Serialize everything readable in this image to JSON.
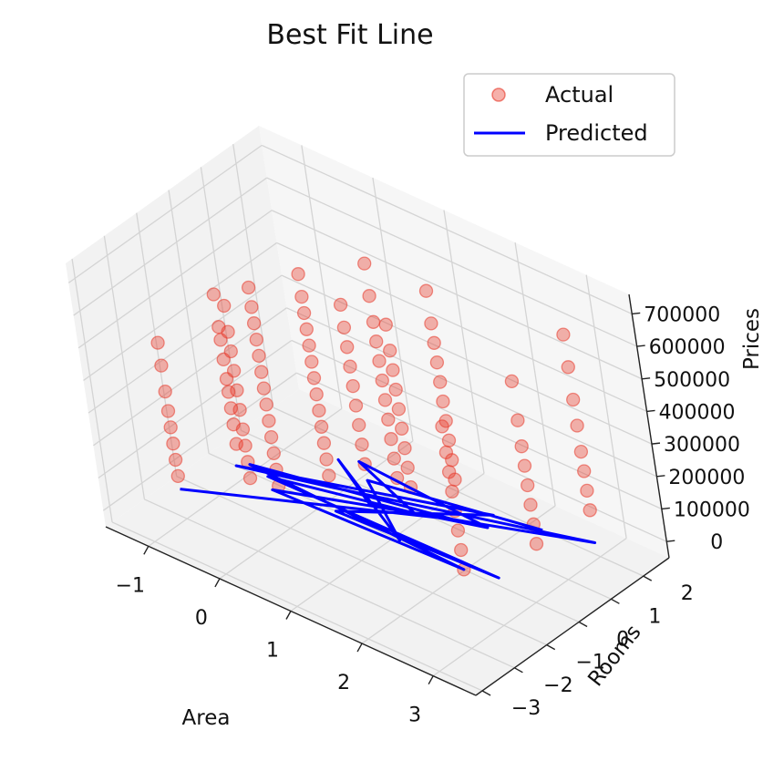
{
  "chart_data": {
    "type": "scatter",
    "projection": "3d",
    "title": "Best Fit Line",
    "xlabel": "Area",
    "ylabel": "Rooms",
    "zlabel": "Prices",
    "xlim": [
      -1.6,
      3.6
    ],
    "ylim": [
      -3.2,
      2.8
    ],
    "zlim": [
      -50000,
      760000
    ],
    "x_ticks": [
      "−1",
      "0",
      "1",
      "2",
      "3"
    ],
    "y_ticks": [
      "−3",
      "−2",
      "−1",
      "0",
      "1",
      "2"
    ],
    "z_ticks": [
      "0",
      "100000",
      "200000",
      "300000",
      "400000",
      "500000",
      "600000",
      "700000"
    ],
    "grid": true,
    "legend": "top-right",
    "colors": {
      "actual": "#e8392a",
      "predicted": "#0000ff"
    },
    "series": [
      {
        "name": "Actual",
        "kind": "scatter",
        "columns": [
          {
            "x": -1.2,
            "y": -1.7,
            "z": [
              40000,
              90000,
              140000,
              190000,
              240000,
              300000,
              380000,
              450000
            ]
          },
          {
            "x": -1.0,
            "y": -0.3,
            "z": [
              60000,
              120000,
              170000,
              220000,
              260000,
              320000,
              380000,
              420000,
              520000
            ]
          },
          {
            "x": -0.6,
            "y": -0.8,
            "z": [
              30000,
              80000,
              130000,
              180000,
              240000,
              300000,
              360000,
              420000,
              480000,
              560000
            ]
          },
          {
            "x": -0.35,
            "y": -0.5,
            "z": [
              10000,
              60000,
              110000,
              160000,
              210000,
              260000,
              310000,
              360000,
              410000,
              460000,
              510000,
              560000,
              620000
            ]
          },
          {
            "x": 0.0,
            "y": 0.3,
            "z": [
              20000,
              70000,
              120000,
              170000,
              220000,
              270000,
              320000,
              370000,
              420000,
              470000,
              520000,
              570000,
              640000
            ]
          },
          {
            "x": 0.3,
            "y": 0.8,
            "z": [
              50000,
              110000,
              170000,
              230000,
              290000,
              350000,
              410000,
              470000,
              540000
            ]
          },
          {
            "x": 0.7,
            "y": 0.9,
            "z": [
              40000,
              100000,
              160000,
              220000,
              280000,
              340000,
              400000,
              460000,
              520000,
              600000,
              700000
            ]
          },
          {
            "x": 1.1,
            "y": 0.5,
            "z": [
              80000,
              140000,
              200000,
              260000,
              320000,
              380000,
              440000,
              500000,
              580000
            ]
          },
          {
            "x": 1.3,
            "y": 1.4,
            "z": [
              60000,
              120000,
              180000,
              240000,
              300000,
              360000,
              420000,
              480000,
              540000,
              640000
            ]
          },
          {
            "x": 2.2,
            "y": -0.4,
            "z": [
              0,
              60000,
              120000,
              180000,
              240000,
              300000,
              360000,
              440000
            ]
          },
          {
            "x": 2.6,
            "y": 1.0,
            "z": [
              20000,
              80000,
              140000,
              200000,
              260000,
              320000,
              400000,
              520000
            ]
          },
          {
            "x": 3.0,
            "y": 1.9,
            "z": [
              100000,
              160000,
              220000,
              280000,
              360000,
              440000,
              540000,
              640000
            ]
          }
        ]
      },
      {
        "name": "Predicted",
        "kind": "line",
        "points": [
          [
            -1.2,
            -1.7,
            0
          ],
          [
            1.5,
            0.8,
            0
          ],
          [
            -0.9,
            -0.2,
            0
          ],
          [
            2.2,
            -0.4,
            0
          ],
          [
            -0.4,
            -0.6,
            0
          ],
          [
            3.0,
            1.9,
            0
          ],
          [
            0.1,
            0.2,
            0
          ],
          [
            -1.0,
            -0.4,
            0
          ],
          [
            1.8,
            1.4,
            0
          ],
          [
            0.4,
            -0.4,
            0
          ],
          [
            2.6,
            -0.2,
            0
          ],
          [
            -0.6,
            -0.3,
            0
          ],
          [
            1.1,
            0.5,
            0
          ],
          [
            0.0,
            1.2,
            0
          ],
          [
            1.9,
            1.0,
            0
          ],
          [
            0.6,
            0.2,
            0
          ],
          [
            -0.2,
            1.0,
            0
          ],
          [
            1.3,
            -0.4,
            0
          ],
          [
            0.3,
            0.8,
            0
          ],
          [
            2.4,
            1.6,
            0
          ]
        ]
      }
    ]
  }
}
